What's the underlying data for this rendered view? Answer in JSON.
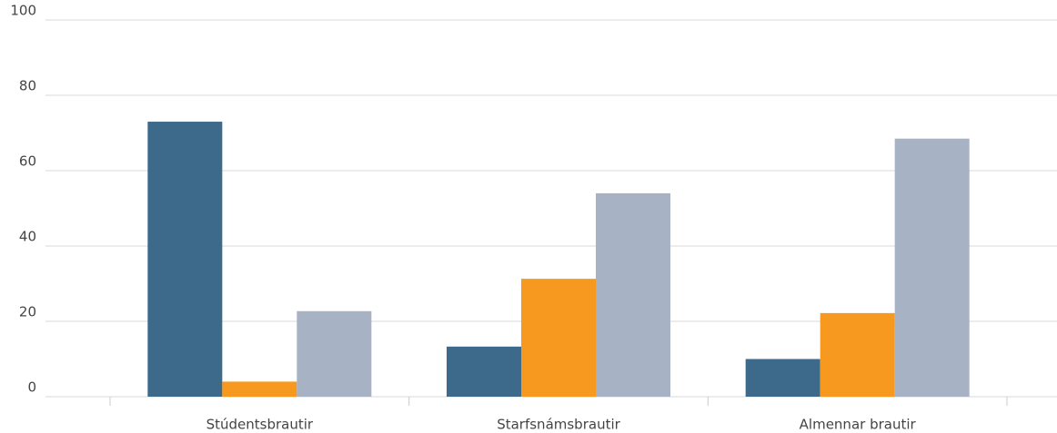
{
  "chart_data": {
    "type": "bar",
    "categories": [
      "Stúdentsbrautir",
      "Starfsnámsbrautir",
      "Almennar brautir"
    ],
    "series": [
      {
        "color": "#3d6a8a",
        "values": [
          73,
          13.3,
          10
        ]
      },
      {
        "color": "#f7991f",
        "values": [
          4,
          31.3,
          22.2
        ]
      },
      {
        "color": "#a7b2c4",
        "values": [
          22.7,
          54,
          68.5
        ]
      }
    ],
    "ylim": [
      0,
      100
    ],
    "yticks": [
      0,
      20,
      40,
      60,
      80,
      100
    ],
    "grid": true
  }
}
